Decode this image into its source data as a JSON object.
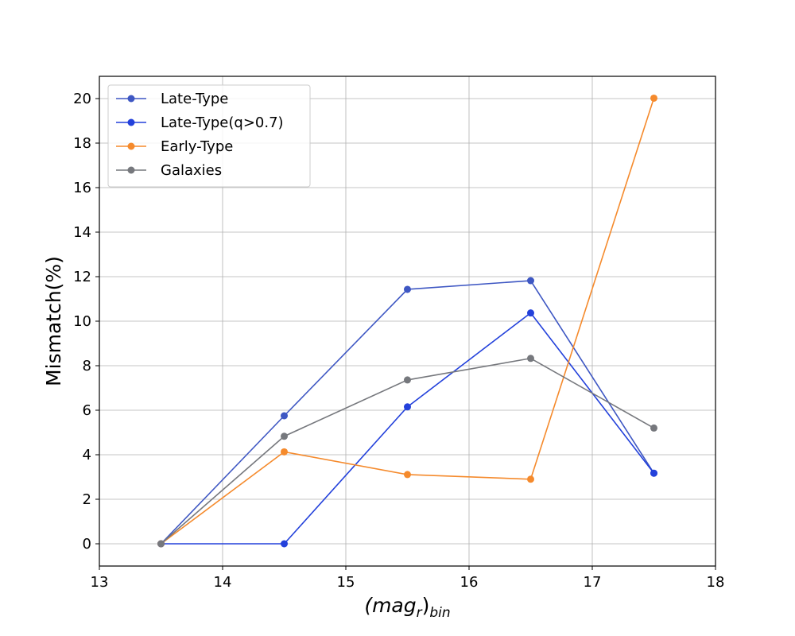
{
  "chart_data": {
    "type": "line",
    "x": [
      13.5,
      14.5,
      15.5,
      16.5,
      17.5
    ],
    "series": [
      {
        "name": "Late-Type",
        "values": [
          0,
          5.75,
          11.43,
          11.82,
          3.17
        ],
        "color": "#3e57c3"
      },
      {
        "name": "Late-Type(q>0.7)",
        "values": [
          0,
          0,
          6.15,
          10.37,
          3.17
        ],
        "color": "#2341db"
      },
      {
        "name": "Early-Type",
        "values": [
          0,
          4.13,
          3.11,
          2.9,
          20.02
        ],
        "color": "#f58a2c"
      },
      {
        "name": "Galaxies",
        "values": [
          0,
          4.83,
          7.36,
          8.33,
          5.2
        ],
        "color": "#76787d"
      }
    ],
    "xlim": [
      13,
      18
    ],
    "ylim": [
      -1,
      21
    ],
    "xticks": [
      13,
      14,
      15,
      16,
      17,
      18
    ],
    "yticks": [
      0,
      2,
      4,
      6,
      8,
      10,
      12,
      14,
      16,
      18,
      20
    ],
    "xlabel": {
      "main": "(mag",
      "sub1": "r",
      "close": ")",
      "sub2": "bin"
    },
    "ylabel": "Mismatch(%)",
    "grid": true,
    "legend_position": "top-left"
  }
}
